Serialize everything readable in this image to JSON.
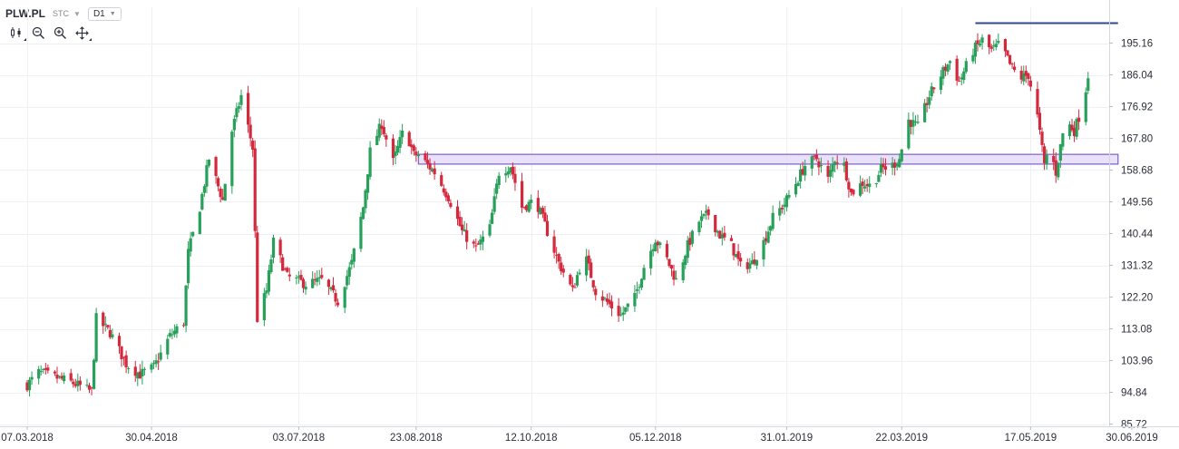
{
  "header": {
    "symbol": "PLW.PL",
    "exchange": "STC",
    "timeframe": "D1"
  },
  "toolbar": {
    "icons": [
      "candlestick-icon",
      "zoom-out-icon",
      "zoom-in-icon",
      "crosshair-move-icon"
    ]
  },
  "colors": {
    "up": "#27a05a",
    "down": "#d4293d",
    "zone_fill": "#e4dcf8",
    "zone_stroke": "#7e5fc7",
    "resistance": "#2f4a8f",
    "grid": "#eef0f3"
  },
  "chart_data": {
    "type": "candlestick",
    "title": "",
    "xlabel": "",
    "ylabel": "",
    "ylim": [
      85.72,
      201.5
    ],
    "x_range": [
      "2018-03-07",
      "2019-07-01"
    ],
    "y_ticks": [
      "195.16",
      "186.04",
      "176.92",
      "167.80",
      "158.68",
      "149.56",
      "140.44",
      "131.32",
      "122.20",
      "113.08",
      "103.96",
      "94.84",
      "85.72"
    ],
    "x_ticks": [
      {
        "label": "07.03.2018",
        "date": "2018-03-07"
      },
      {
        "label": "30.04.2018",
        "date": "2018-04-30"
      },
      {
        "label": "03.07.2018",
        "date": "2018-07-03"
      },
      {
        "label": "23.08.2018",
        "date": "2018-08-23"
      },
      {
        "label": "12.10.2018",
        "date": "2018-10-12"
      },
      {
        "label": "05.12.2018",
        "date": "2018-12-05"
      },
      {
        "label": "31.01.2019",
        "date": "2019-01-31"
      },
      {
        "label": "22.03.2019",
        "date": "2019-03-22"
      },
      {
        "label": "17.05.2019",
        "date": "2019-05-17"
      },
      {
        "label": "30.06.2019",
        "date": "2019-06-30"
      }
    ],
    "grid": true,
    "series": [
      {
        "name": "PLW.PL",
        "anchors": [
          {
            "date": "2018-03-07",
            "close": 97
          },
          {
            "date": "2018-03-12",
            "close": 100.5
          },
          {
            "date": "2018-03-20",
            "close": 99
          },
          {
            "date": "2018-03-27",
            "close": 97.5
          },
          {
            "date": "2018-04-04",
            "close": 95
          },
          {
            "date": "2018-04-06",
            "close": 116
          },
          {
            "date": "2018-04-12",
            "close": 112
          },
          {
            "date": "2018-04-19",
            "close": 103
          },
          {
            "date": "2018-04-25",
            "close": 100
          },
          {
            "date": "2018-05-01",
            "close": 102
          },
          {
            "date": "2018-05-08",
            "close": 111
          },
          {
            "date": "2018-05-14",
            "close": 115
          },
          {
            "date": "2018-05-16",
            "close": 135
          },
          {
            "date": "2018-05-21",
            "close": 148
          },
          {
            "date": "2018-05-25",
            "close": 162
          },
          {
            "date": "2018-05-31",
            "close": 150
          },
          {
            "date": "2018-06-04",
            "close": 170
          },
          {
            "date": "2018-06-08",
            "close": 180
          },
          {
            "date": "2018-06-13",
            "close": 165
          },
          {
            "date": "2018-06-15",
            "close": 116
          },
          {
            "date": "2018-06-19",
            "close": 124
          },
          {
            "date": "2018-06-22",
            "close": 138
          },
          {
            "date": "2018-06-28",
            "close": 128
          },
          {
            "date": "2018-07-06",
            "close": 126
          },
          {
            "date": "2018-07-13",
            "close": 127
          },
          {
            "date": "2018-07-20",
            "close": 121
          },
          {
            "date": "2018-07-26",
            "close": 132
          },
          {
            "date": "2018-07-31",
            "close": 148
          },
          {
            "date": "2018-08-03",
            "close": 164
          },
          {
            "date": "2018-08-08",
            "close": 172
          },
          {
            "date": "2018-08-13",
            "close": 161
          },
          {
            "date": "2018-08-18",
            "close": 171
          },
          {
            "date": "2018-08-22",
            "close": 163
          },
          {
            "date": "2018-08-24",
            "close": 163
          },
          {
            "date": "2018-08-31",
            "close": 158
          },
          {
            "date": "2018-09-06",
            "close": 151
          },
          {
            "date": "2018-09-12",
            "close": 141
          },
          {
            "date": "2018-09-18",
            "close": 136
          },
          {
            "date": "2018-09-24",
            "close": 142
          },
          {
            "date": "2018-09-28",
            "close": 158
          },
          {
            "date": "2018-10-03",
            "close": 160
          },
          {
            "date": "2018-10-08",
            "close": 148
          },
          {
            "date": "2018-10-14",
            "close": 150
          },
          {
            "date": "2018-10-19",
            "close": 141
          },
          {
            "date": "2018-10-24",
            "close": 132
          },
          {
            "date": "2018-10-30",
            "close": 124
          },
          {
            "date": "2018-11-04",
            "close": 135
          },
          {
            "date": "2018-11-09",
            "close": 124
          },
          {
            "date": "2018-11-15",
            "close": 120
          },
          {
            "date": "2018-11-20",
            "close": 117
          },
          {
            "date": "2018-11-26",
            "close": 122
          },
          {
            "date": "2018-11-30",
            "close": 131
          },
          {
            "date": "2018-12-05",
            "close": 139
          },
          {
            "date": "2018-12-10",
            "close": 133
          },
          {
            "date": "2018-12-14",
            "close": 127
          },
          {
            "date": "2018-12-19",
            "close": 137
          },
          {
            "date": "2018-12-24",
            "close": 144
          },
          {
            "date": "2018-12-28",
            "close": 146
          },
          {
            "date": "2019-01-02",
            "close": 140
          },
          {
            "date": "2019-01-07",
            "close": 137
          },
          {
            "date": "2019-01-11",
            "close": 131
          },
          {
            "date": "2019-01-16",
            "close": 132
          },
          {
            "date": "2019-01-21",
            "close": 138
          },
          {
            "date": "2019-01-25",
            "close": 145
          },
          {
            "date": "2019-01-30",
            "close": 149
          },
          {
            "date": "2019-02-04",
            "close": 155
          },
          {
            "date": "2019-02-08",
            "close": 160
          },
          {
            "date": "2019-02-13",
            "close": 162
          },
          {
            "date": "2019-02-18",
            "close": 156
          },
          {
            "date": "2019-02-21",
            "close": 162
          },
          {
            "date": "2019-02-25",
            "close": 160
          },
          {
            "date": "2019-02-28",
            "close": 152
          },
          {
            "date": "2019-03-05",
            "close": 155
          },
          {
            "date": "2019-03-09",
            "close": 154
          },
          {
            "date": "2019-03-13",
            "close": 159
          },
          {
            "date": "2019-03-18",
            "close": 160
          },
          {
            "date": "2019-03-21",
            "close": 162
          },
          {
            "date": "2019-03-25",
            "close": 173
          },
          {
            "date": "2019-03-29",
            "close": 171
          },
          {
            "date": "2019-04-03",
            "close": 180
          },
          {
            "date": "2019-04-08",
            "close": 186
          },
          {
            "date": "2019-04-12",
            "close": 190
          },
          {
            "date": "2019-04-16",
            "close": 184
          },
          {
            "date": "2019-04-22",
            "close": 193
          },
          {
            "date": "2019-04-26",
            "close": 196
          },
          {
            "date": "2019-04-30",
            "close": 193
          },
          {
            "date": "2019-05-04",
            "close": 195
          },
          {
            "date": "2019-05-08",
            "close": 189
          },
          {
            "date": "2019-05-12",
            "close": 185
          },
          {
            "date": "2019-05-16",
            "close": 186
          },
          {
            "date": "2019-05-20",
            "close": 174
          },
          {
            "date": "2019-05-23",
            "close": 160
          },
          {
            "date": "2019-05-25",
            "close": 166
          },
          {
            "date": "2019-05-28",
            "close": 158
          },
          {
            "date": "2019-06-01",
            "close": 173
          },
          {
            "date": "2019-06-05",
            "close": 170
          },
          {
            "date": "2019-06-09",
            "close": 178
          },
          {
            "date": "2019-06-11",
            "close": 186
          }
        ]
      }
    ],
    "annotations": [
      {
        "type": "zone",
        "y_low": 160.4,
        "y_high": 163.2,
        "x_start": "2018-08-24",
        "x_end": "2019-06-24"
      },
      {
        "type": "hline",
        "y": 201.0,
        "x_start": "2019-04-23",
        "x_end": "2019-06-24"
      }
    ]
  }
}
